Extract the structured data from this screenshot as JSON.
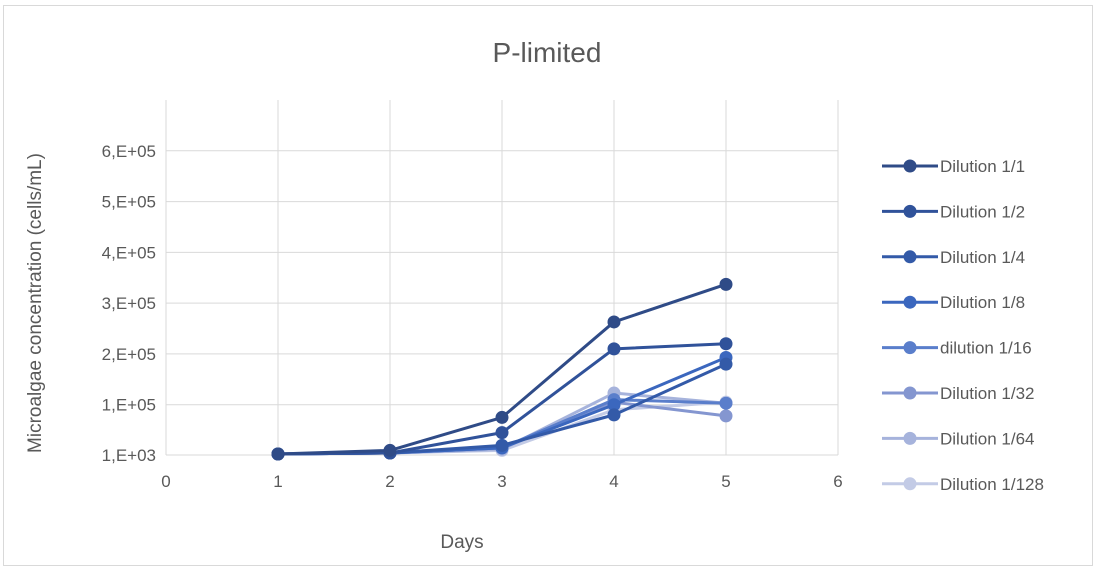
{
  "chart_data": {
    "type": "line",
    "title": "P-limited",
    "xlabel": "Days",
    "ylabel": "Microalgae concentration (cells/mL)",
    "xlim": [
      0,
      6
    ],
    "ylim": [
      1000,
      700000
    ],
    "x_ticks": [
      "0",
      "1",
      "2",
      "3",
      "4",
      "5",
      "6"
    ],
    "y_ticks": [
      "1,E+03",
      "1,E+05",
      "2,E+05",
      "3,E+05",
      "4,E+05",
      "5,E+05",
      "6,E+05"
    ],
    "y_tick_values": [
      1000,
      100000,
      200000,
      300000,
      400000,
      500000,
      600000
    ],
    "grid": true,
    "legend_position": "right",
    "x": [
      1,
      2,
      3,
      4,
      5
    ],
    "series": [
      {
        "name": "Dilution 1/1",
        "color": "#2F4B87",
        "values": [
          3000,
          10000,
          75000,
          263000,
          337000
        ]
      },
      {
        "name": "Dilution 1/2",
        "color": "#30529A",
        "values": [
          3000,
          5000,
          45000,
          210000,
          220000
        ]
      },
      {
        "name": "Dilution 1/4",
        "color": "#335AA8",
        "values": [
          3000,
          5000,
          20000,
          80000,
          180000
        ]
      },
      {
        "name": "Dilution 1/8",
        "color": "#3B67BE",
        "values": [
          3000,
          5000,
          15000,
          100000,
          193000
        ]
      },
      {
        "name": "dilution 1/16",
        "color": "#5A7ECB",
        "values": [
          3000,
          5000,
          15000,
          110000,
          103000
        ]
      },
      {
        "name": "Dilution 1/32",
        "color": "#8496D0",
        "values": [
          3000,
          5000,
          15000,
          105000,
          78000
        ]
      },
      {
        "name": "Dilution 1/64",
        "color": "#A6B3DC",
        "values": [
          3000,
          5000,
          12000,
          123000,
          103000
        ]
      },
      {
        "name": "Dilution 1/128",
        "color": "#C3CBE6",
        "values": [
          3000,
          5000,
          10000,
          90000,
          105000
        ]
      }
    ]
  }
}
